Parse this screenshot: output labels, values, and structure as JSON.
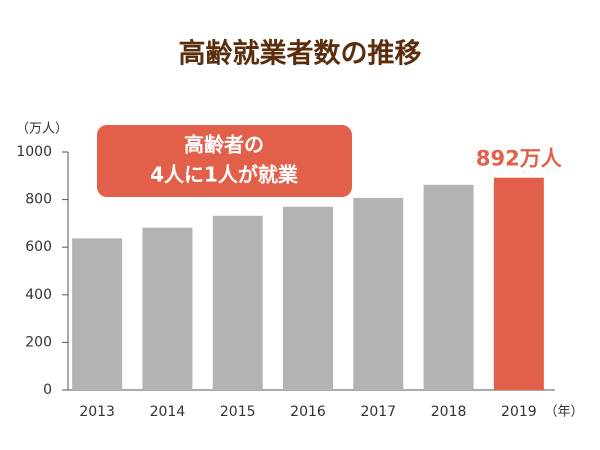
{
  "chart_data": {
    "type": "bar",
    "title": "高齢就業者数の推移",
    "y_label": "（万人）",
    "x_label": "（年）",
    "annotation": [
      "高齢者の",
      "4人に1人が就業"
    ],
    "categories": [
      "2013",
      "2014",
      "2015",
      "2016",
      "2017",
      "2018",
      "2019"
    ],
    "values": [
      637,
      682,
      732,
      770,
      807,
      862,
      892
    ],
    "value_labels": [
      null,
      null,
      null,
      null,
      null,
      null,
      "892万人"
    ],
    "colors": [
      "#b3b3b3",
      "#b3b3b3",
      "#b3b3b3",
      "#b3b3b3",
      "#b3b3b3",
      "#b3b3b3",
      "#e2604a"
    ],
    "ylim": [
      0,
      1000
    ],
    "yticks": [
      0,
      200,
      400,
      600,
      800,
      1000
    ],
    "grid": false
  }
}
